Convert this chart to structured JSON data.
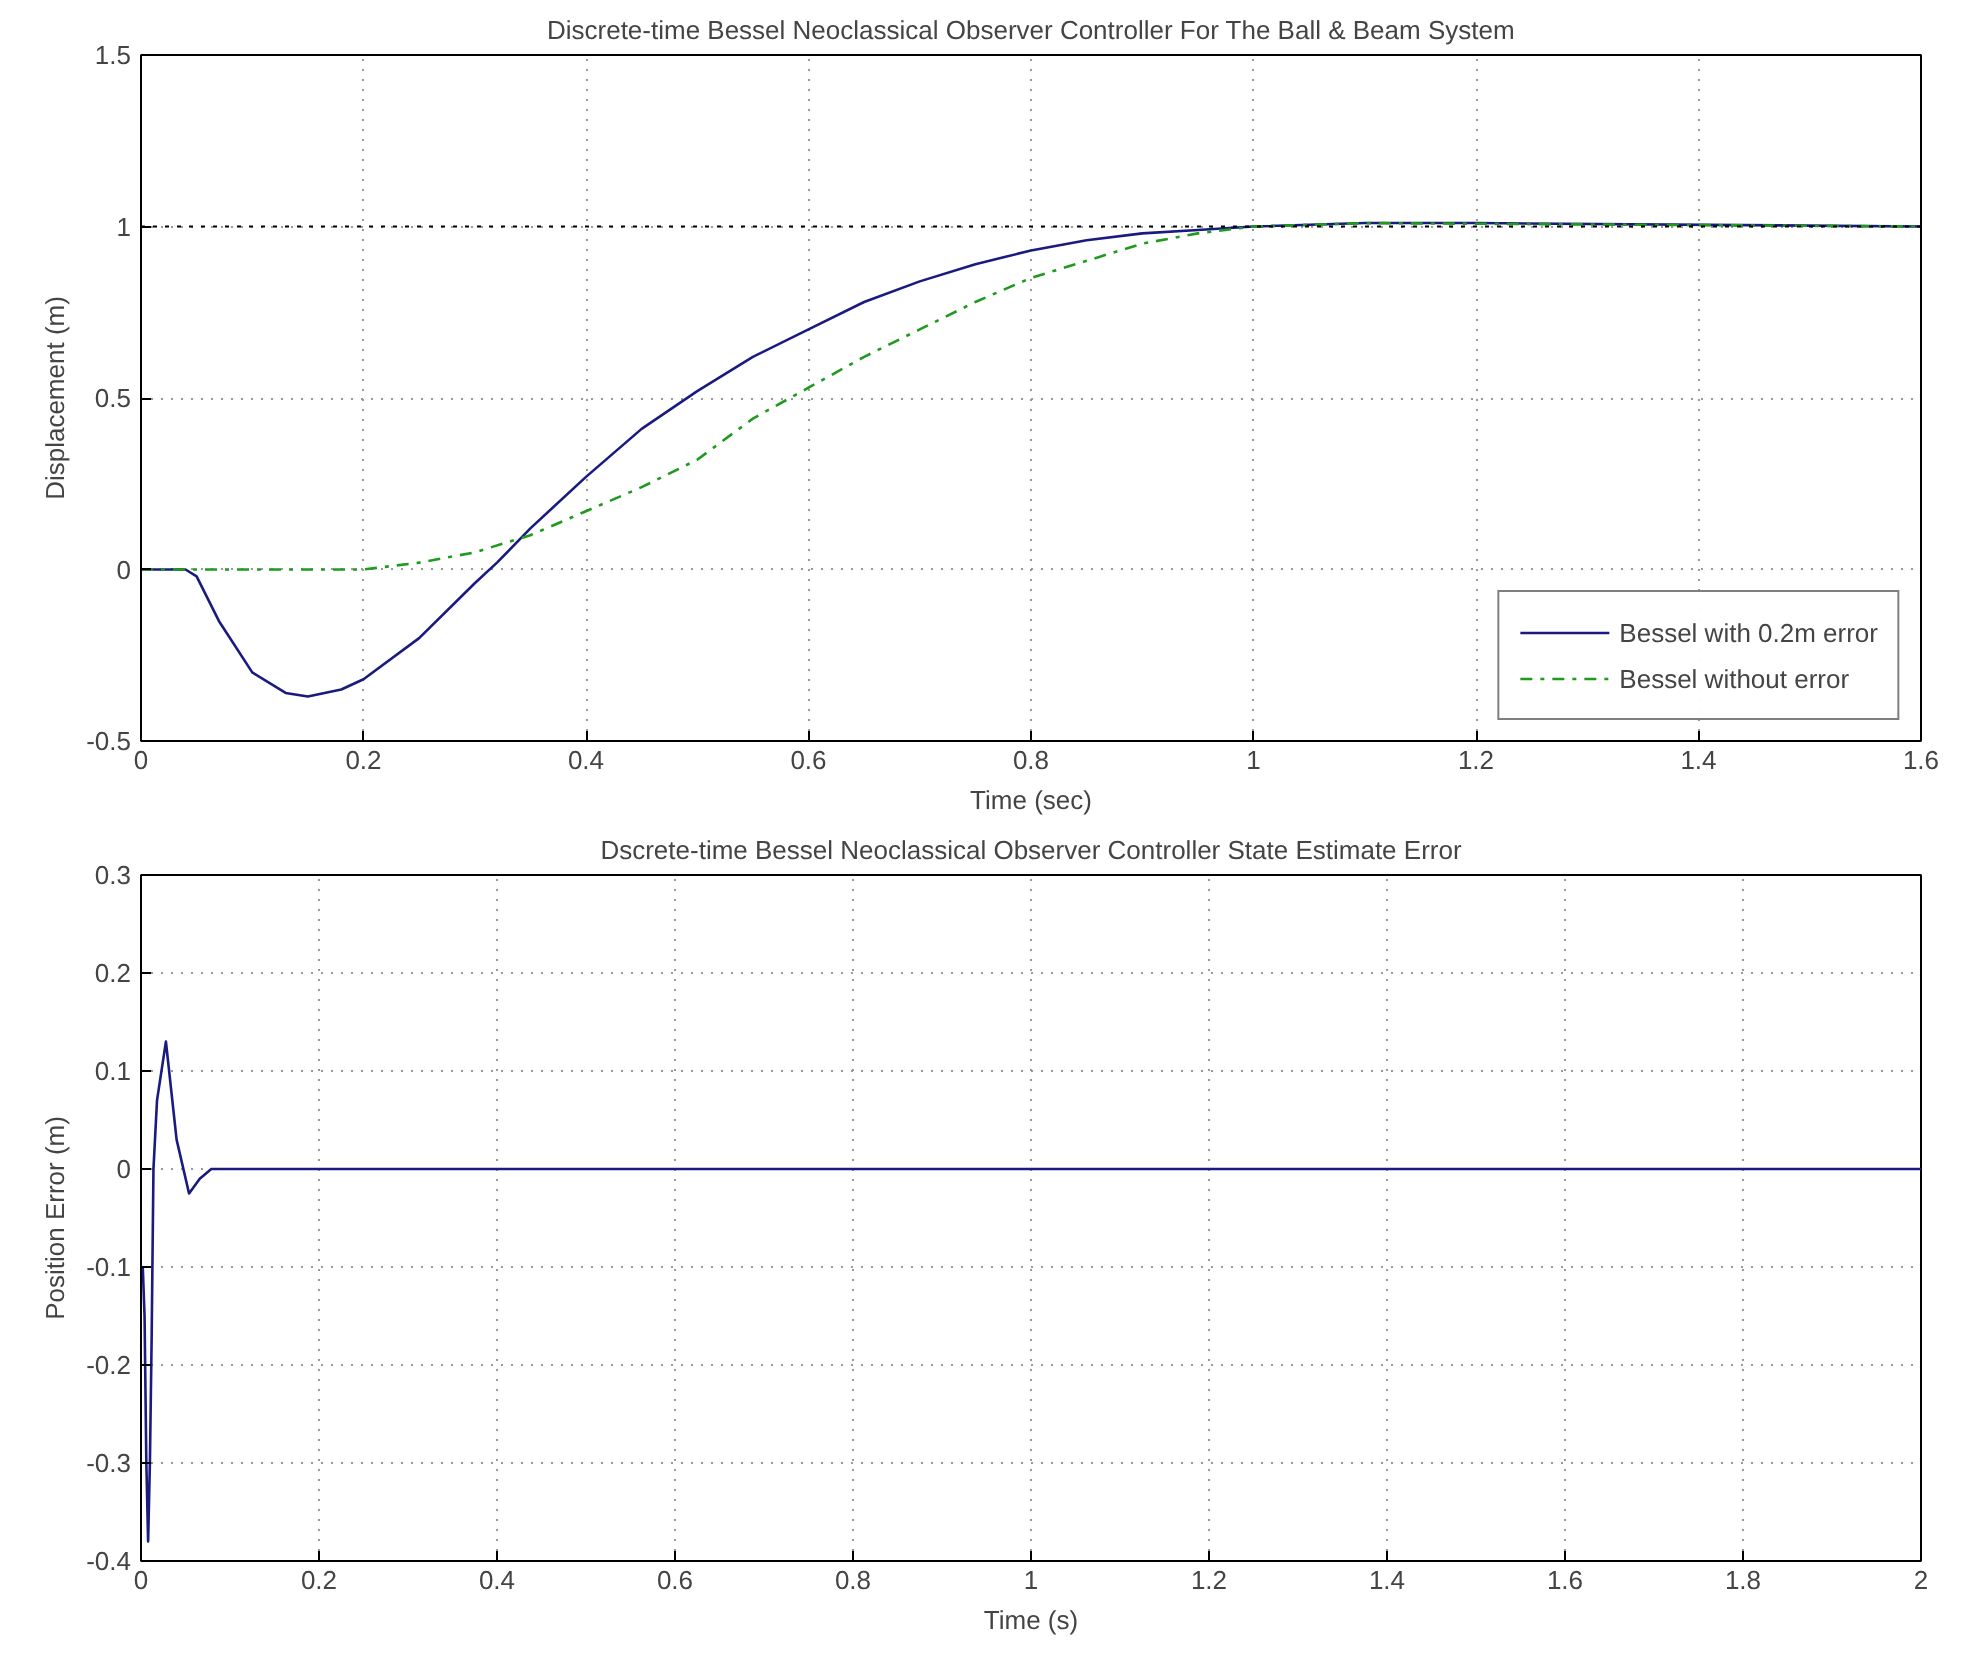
{
  "chart_data": [
    {
      "type": "line",
      "title": "Discrete-time Bessel Neoclassical Observer Controller For The Ball & Beam System",
      "xlabel": "Time (sec)",
      "ylabel": "Displacement (m)",
      "xlim": [
        0,
        1.6
      ],
      "ylim": [
        -0.5,
        1.5
      ],
      "xticks": [
        0,
        0.2,
        0.4,
        0.6,
        0.8,
        1,
        1.2,
        1.4,
        1.6
      ],
      "yticks": [
        -0.5,
        0,
        0.5,
        1,
        1.5
      ],
      "grid": true,
      "legend": "bottom right",
      "ref_lines": [
        {
          "axis": "y",
          "value": 1,
          "color": "#000000",
          "line_style": "dotted"
        }
      ],
      "series": [
        {
          "name": "Bessel with 0.2m error",
          "color": "#1a1a80",
          "line_style": "solid",
          "x": [
            0,
            0.04,
            0.05,
            0.07,
            0.1,
            0.13,
            0.15,
            0.18,
            0.2,
            0.25,
            0.3,
            0.32,
            0.35,
            0.4,
            0.45,
            0.5,
            0.55,
            0.6,
            0.65,
            0.7,
            0.75,
            0.8,
            0.85,
            0.9,
            0.95,
            1.0,
            1.1,
            1.2,
            1.6
          ],
          "values": [
            0,
            0,
            -0.02,
            -0.15,
            -0.3,
            -0.36,
            -0.37,
            -0.35,
            -0.32,
            -0.2,
            -0.04,
            0.02,
            0.12,
            0.27,
            0.41,
            0.52,
            0.62,
            0.7,
            0.78,
            0.84,
            0.89,
            0.93,
            0.96,
            0.98,
            0.99,
            1.0,
            1.01,
            1.01,
            1.0
          ]
        },
        {
          "name": "Bessel without error",
          "color": "#1f9a1f",
          "line_style": "dashed",
          "x": [
            0,
            0.2,
            0.25,
            0.3,
            0.35,
            0.4,
            0.45,
            0.5,
            0.55,
            0.6,
            0.65,
            0.7,
            0.75,
            0.8,
            0.85,
            0.9,
            0.95,
            1.0,
            1.1,
            1.6
          ],
          "values": [
            0,
            0,
            0.02,
            0.05,
            0.1,
            0.17,
            0.24,
            0.32,
            0.44,
            0.53,
            0.62,
            0.7,
            0.78,
            0.85,
            0.9,
            0.95,
            0.98,
            1.0,
            1.01,
            1.0
          ]
        }
      ]
    },
    {
      "type": "line",
      "title": "Dscrete-time Bessel Neoclassical Observer Controller State Estimate Error",
      "xlabel": "Time (s)",
      "ylabel": "Position Error (m)",
      "xlim": [
        0,
        2
      ],
      "ylim": [
        -0.4,
        0.3
      ],
      "xticks": [
        0,
        0.2,
        0.4,
        0.6,
        0.8,
        1,
        1.2,
        1.4,
        1.6,
        1.8,
        2
      ],
      "yticks": [
        -0.4,
        -0.3,
        -0.2,
        -0.1,
        0,
        0.1,
        0.2,
        0.3
      ],
      "grid": true,
      "series": [
        {
          "color": "#1a1a80",
          "line_style": "solid",
          "x": [
            0.002,
            0.004,
            0.006,
            0.008,
            0.01,
            0.012,
            0.014,
            0.018,
            0.028,
            0.04,
            0.054,
            0.066,
            0.079,
            2
          ],
          "values": [
            -0.1,
            -0.15,
            -0.3,
            -0.38,
            -0.3,
            -0.17,
            0.0,
            0.07,
            0.13,
            0.03,
            -0.025,
            -0.01,
            0,
            0
          ]
        }
      ]
    }
  ]
}
